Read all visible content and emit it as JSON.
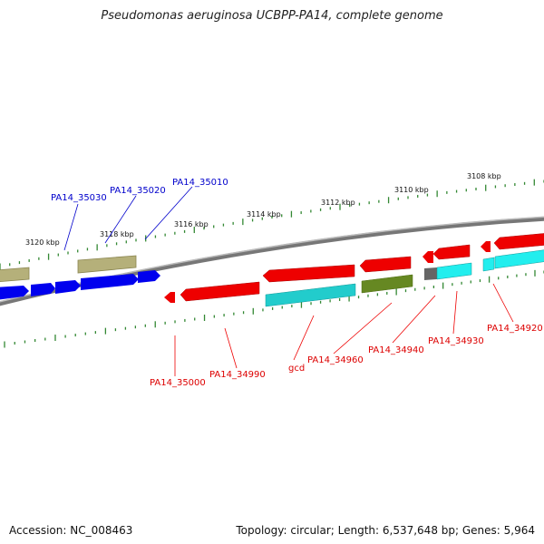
{
  "title": "Pseudomonas aeruginosa UCBPP-PA14, complete genome",
  "footer": {
    "accession": "Accession: NC_008463",
    "summary": "Topology: circular; Length: 6,537,648 bp; Genes: 5,964"
  },
  "scale_labels": [
    "3120 kbp",
    "3118 kbp",
    "3116 kbp",
    "3114 kbp",
    "3112 kbp",
    "3110 kbp",
    "3108 kbp"
  ],
  "gene_labels_top": [
    "PA14_35030",
    "PA14_35020",
    "PA14_35010"
  ],
  "gene_labels_bottom": [
    "PA14_35000",
    "PA14_34990",
    "gcd",
    "PA14_34960",
    "PA14_34940",
    "PA14_34930",
    "PA14_34920"
  ],
  "colors": {
    "forward_strand": "#0000ee",
    "reverse_strand": "#ee0000",
    "olive": "#b5b07a",
    "cyan": "#22cccc",
    "dark_green": "#668822",
    "tick": "#338833",
    "backbone": "#888888"
  }
}
